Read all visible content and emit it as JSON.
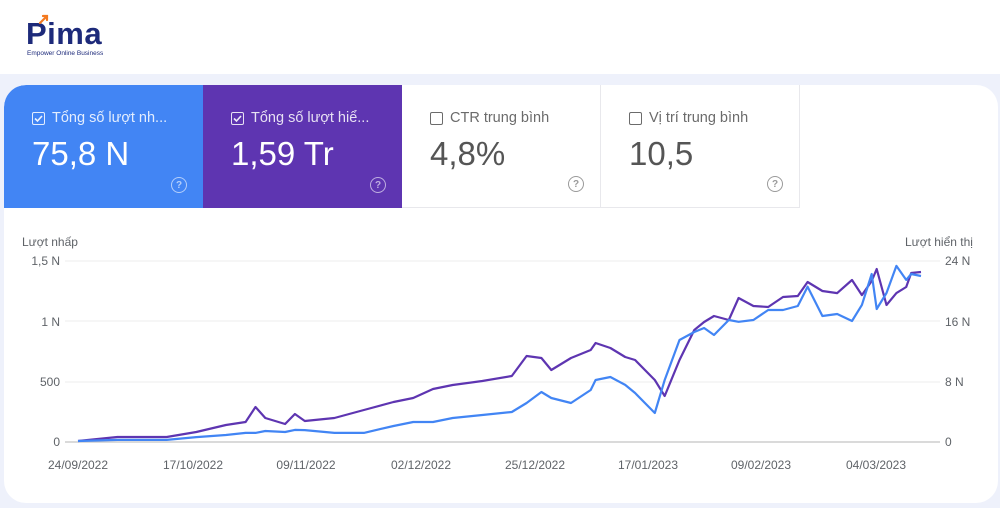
{
  "brand": {
    "name": "Pima",
    "tagline": "Empower Online Business",
    "colors": {
      "primary": "#1d2a7a",
      "accent": "#f47a20"
    }
  },
  "cards": [
    {
      "id": "clicks",
      "label": "Tổng số lượt nh...",
      "value": "75,8 N",
      "checked": true,
      "color": "#4285f4",
      "help_icon": "?"
    },
    {
      "id": "impressions",
      "label": "Tổng số lượt hiể...",
      "value": "1,59 Tr",
      "checked": true,
      "color": "#5e35b1",
      "help_icon": "?"
    },
    {
      "id": "ctr",
      "label": "CTR trung bình",
      "value": "4,8%",
      "checked": false,
      "color": "#ffffff",
      "help_icon": "?"
    },
    {
      "id": "position",
      "label": "Vị trí trung bình",
      "value": "10,5",
      "checked": false,
      "color": "#ffffff",
      "help_icon": "?"
    }
  ],
  "chart_data": {
    "type": "line",
    "title": "",
    "xlabel": "",
    "ylabel": "Lượt nhấp",
    "y2label": "Lượt hiển thị",
    "ylim": [
      0,
      1500
    ],
    "y2lim": [
      0,
      24000
    ],
    "grid": true,
    "legend": "none (series toggled via metric cards above)",
    "x_tick_labels": [
      "24/09/2022",
      "17/10/2022",
      "09/11/2022",
      "02/12/2022",
      "25/12/2022",
      "17/01/2023",
      "09/02/2023",
      "04/03/2023"
    ],
    "y_tick_labels": [
      "0",
      "500",
      "1 N",
      "1,5 N"
    ],
    "y2_tick_labels": [
      "0",
      "8 N",
      "16 N",
      "24 N"
    ],
    "series": [
      {
        "name": "Lượt nhấp (Clicks)",
        "axis": "left",
        "color": "#4285f4",
        "x": [
          "24/09/2022",
          "02/10/2022",
          "12/10/2022",
          "18/10/2022",
          "24/10/2022",
          "28/10/2022",
          "30/10/2022",
          "01/11/2022",
          "05/11/2022",
          "07/11/2022",
          "09/11/2022",
          "15/11/2022",
          "21/11/2022",
          "27/11/2022",
          "01/12/2022",
          "05/12/2022",
          "09/12/2022",
          "15/12/2022",
          "21/12/2022",
          "24/12/2022",
          "27/12/2022",
          "29/12/2022",
          "02/01/2023",
          "06/01/2023",
          "07/01/2023",
          "10/01/2023",
          "13/01/2023",
          "15/01/2023",
          "19/01/2023",
          "21/01/2023",
          "24/01/2023",
          "27/01/2023",
          "29/01/2023",
          "31/01/2023",
          "03/02/2023",
          "05/02/2023",
          "08/02/2023",
          "11/02/2023",
          "14/02/2023",
          "17/02/2023",
          "19/02/2023",
          "22/02/2023",
          "25/02/2023",
          "28/02/2023",
          "02/03/2023",
          "04/03/2023",
          "05/03/2023",
          "07/03/2023",
          "09/03/2023",
          "11/03/2023",
          "12/03/2023",
          "14/03/2023"
        ],
        "values": [
          8,
          17,
          17,
          41,
          58,
          75,
          75,
          91,
          83,
          100,
          99,
          75,
          75,
          133,
          166,
          166,
          199,
          224,
          249,
          323,
          414,
          365,
          323,
          431,
          514,
          539,
          473,
          406,
          240,
          514,
          845,
          912,
          945,
          887,
          1011,
          996,
          1011,
          1094,
          1094,
          1127,
          1287,
          1044,
          1061,
          1003,
          1136,
          1392,
          1102,
          1235,
          1459,
          1343,
          1392,
          1376
        ]
      },
      {
        "name": "Lượt hiển thị (Impressions)",
        "axis": "right",
        "color": "#5e35b1",
        "x": [
          "24/09/2022",
          "02/10/2022",
          "12/10/2022",
          "18/10/2022",
          "24/10/2022",
          "28/10/2022",
          "30/10/2022",
          "01/11/2022",
          "05/11/2022",
          "07/11/2022",
          "09/11/2022",
          "15/11/2022",
          "21/11/2022",
          "27/11/2022",
          "01/12/2022",
          "05/12/2022",
          "09/12/2022",
          "15/12/2022",
          "21/12/2022",
          "24/12/2022",
          "27/12/2022",
          "29/12/2022",
          "02/01/2023",
          "06/01/2023",
          "07/01/2023",
          "10/01/2023",
          "13/01/2023",
          "15/01/2023",
          "19/01/2023",
          "21/01/2023",
          "24/01/2023",
          "27/01/2023",
          "29/01/2023",
          "31/01/2023",
          "03/02/2023",
          "05/02/2023",
          "08/02/2023",
          "11/02/2023",
          "14/02/2023",
          "17/02/2023",
          "19/02/2023",
          "22/02/2023",
          "25/02/2023",
          "28/02/2023",
          "02/03/2023",
          "04/03/2023",
          "05/03/2023",
          "07/03/2023",
          "09/03/2023",
          "11/03/2023",
          "12/03/2023",
          "14/03/2023"
        ],
        "values": [
          130,
          660,
          660,
          1330,
          2250,
          2650,
          4640,
          3180,
          2390,
          3710,
          2780,
          3180,
          4240,
          5300,
          5830,
          7030,
          7560,
          8090,
          8750,
          11400,
          11140,
          9550,
          11140,
          12200,
          13130,
          12460,
          11270,
          10870,
          8220,
          6100,
          10870,
          14850,
          15910,
          16710,
          16180,
          19090,
          18030,
          17900,
          19220,
          19360,
          21220,
          20020,
          19750,
          21480,
          19480,
          21350,
          22940,
          18170,
          19750,
          20550,
          22410,
          22540
        ]
      }
    ]
  }
}
